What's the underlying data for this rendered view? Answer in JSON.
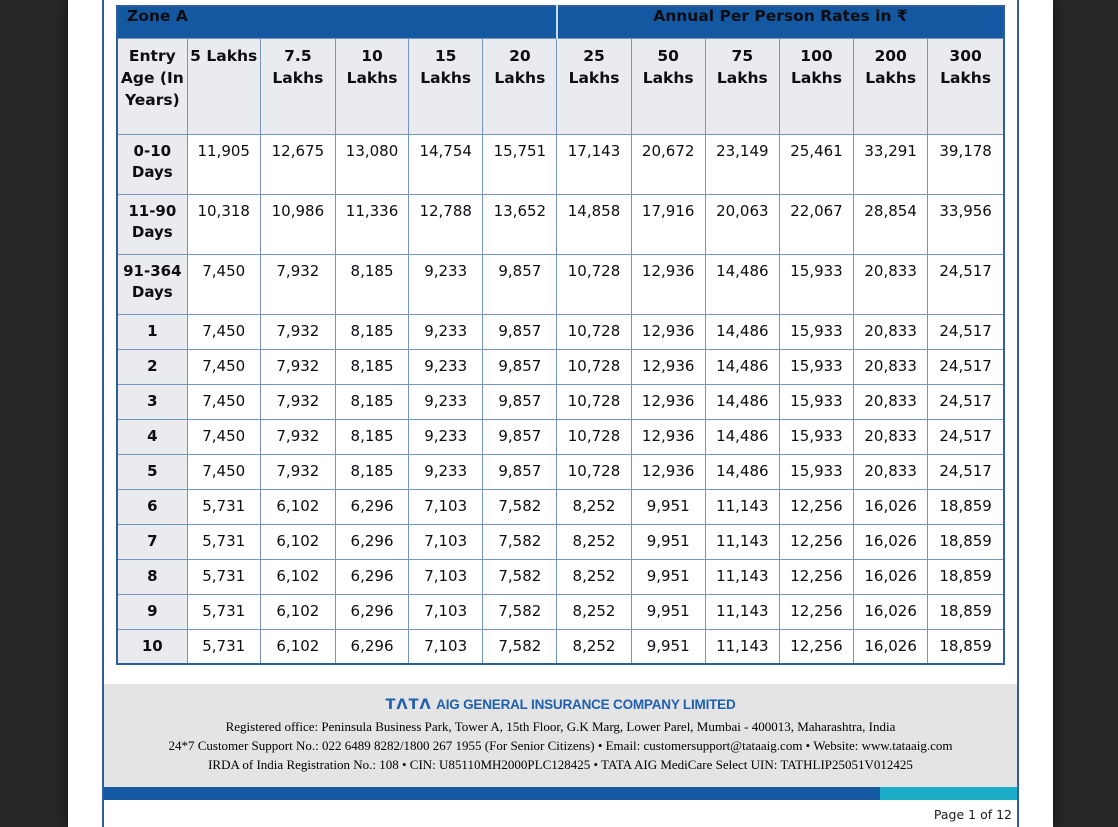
{
  "table": {
    "zone_label": "Zone A",
    "rates_label": "Annual Per Person Rates in ₹",
    "entry_age_header": "Entry Age (In Years)",
    "columns": [
      "5 Lakhs",
      "7.5 Lakhs",
      "10 Lakhs",
      "15 Lakhs",
      "20 Lakhs",
      "25 Lakhs",
      "50 Lakhs",
      "75 Lakhs",
      "100 Lakhs",
      "200 Lakhs",
      "300 Lakhs"
    ],
    "rows": [
      {
        "label": "0-10 Days",
        "values": [
          "11,905",
          "12,675",
          "13,080",
          "14,754",
          "15,751",
          "17,143",
          "20,672",
          "23,149",
          "25,461",
          "33,291",
          "39,178"
        ]
      },
      {
        "label": "11-90 Days",
        "values": [
          "10,318",
          "10,986",
          "11,336",
          "12,788",
          "13,652",
          "14,858",
          "17,916",
          "20,063",
          "22,067",
          "28,854",
          "33,956"
        ]
      },
      {
        "label": "91-364 Days",
        "values": [
          "7,450",
          "7,932",
          "8,185",
          "9,233",
          "9,857",
          "10,728",
          "12,936",
          "14,486",
          "15,933",
          "20,833",
          "24,517"
        ]
      },
      {
        "label": "1",
        "values": [
          "7,450",
          "7,932",
          "8,185",
          "9,233",
          "9,857",
          "10,728",
          "12,936",
          "14,486",
          "15,933",
          "20,833",
          "24,517"
        ]
      },
      {
        "label": "2",
        "values": [
          "7,450",
          "7,932",
          "8,185",
          "9,233",
          "9,857",
          "10,728",
          "12,936",
          "14,486",
          "15,933",
          "20,833",
          "24,517"
        ]
      },
      {
        "label": "3",
        "values": [
          "7,450",
          "7,932",
          "8,185",
          "9,233",
          "9,857",
          "10,728",
          "12,936",
          "14,486",
          "15,933",
          "20,833",
          "24,517"
        ]
      },
      {
        "label": "4",
        "values": [
          "7,450",
          "7,932",
          "8,185",
          "9,233",
          "9,857",
          "10,728",
          "12,936",
          "14,486",
          "15,933",
          "20,833",
          "24,517"
        ]
      },
      {
        "label": "5",
        "values": [
          "7,450",
          "7,932",
          "8,185",
          "9,233",
          "9,857",
          "10,728",
          "12,936",
          "14,486",
          "15,933",
          "20,833",
          "24,517"
        ]
      },
      {
        "label": "6",
        "values": [
          "5,731",
          "6,102",
          "6,296",
          "7,103",
          "7,582",
          "8,252",
          "9,951",
          "11,143",
          "12,256",
          "16,026",
          "18,859"
        ]
      },
      {
        "label": "7",
        "values": [
          "5,731",
          "6,102",
          "6,296",
          "7,103",
          "7,582",
          "8,252",
          "9,951",
          "11,143",
          "12,256",
          "16,026",
          "18,859"
        ]
      },
      {
        "label": "8",
        "values": [
          "5,731",
          "6,102",
          "6,296",
          "7,103",
          "7,582",
          "8,252",
          "9,951",
          "11,143",
          "12,256",
          "16,026",
          "18,859"
        ]
      },
      {
        "label": "9",
        "values": [
          "5,731",
          "6,102",
          "6,296",
          "7,103",
          "7,582",
          "8,252",
          "9,951",
          "11,143",
          "12,256",
          "16,026",
          "18,859"
        ]
      },
      {
        "label": "10",
        "values": [
          "5,731",
          "6,102",
          "6,296",
          "7,103",
          "7,582",
          "8,252",
          "9,951",
          "11,143",
          "12,256",
          "16,026",
          "18,859"
        ]
      }
    ]
  },
  "footer": {
    "logo_text": "TΛTΛ",
    "company_name": "AIG GENERAL INSURANCE COMPANY LIMITED",
    "registered_office": "Registered office: Peninsula Business Park, Tower A, 15th Floor, G.K Marg, Lower Parel, Mumbai - 400013, Maharashtra, India",
    "support_line": "24*7 Customer Support No.: 022 6489 8282/1800 267 1955 (For Senior Citizens) • Email: customersupport@tataaig.com • Website: www.tataaig.com",
    "registration_line": "IRDA of India Registration No.: 108 • CIN: U85110MH2000PLC128425 • TATA AIG MediCare Select UIN: TATHLIP25051V012425"
  },
  "page_indicator": "Page 1 of 12",
  "progress": {
    "filled_percent": 85
  },
  "colors": {
    "header_blue": "#1458a1",
    "outer_border": "#2d5e9d",
    "cell_border": "#7596c1",
    "label_bg": "#e9ebee",
    "footer_bg": "#e4e4e4",
    "brand_blue": "#1e5fae",
    "progress_blue": "#1458a1",
    "progress_teal": "#1cadc9"
  }
}
